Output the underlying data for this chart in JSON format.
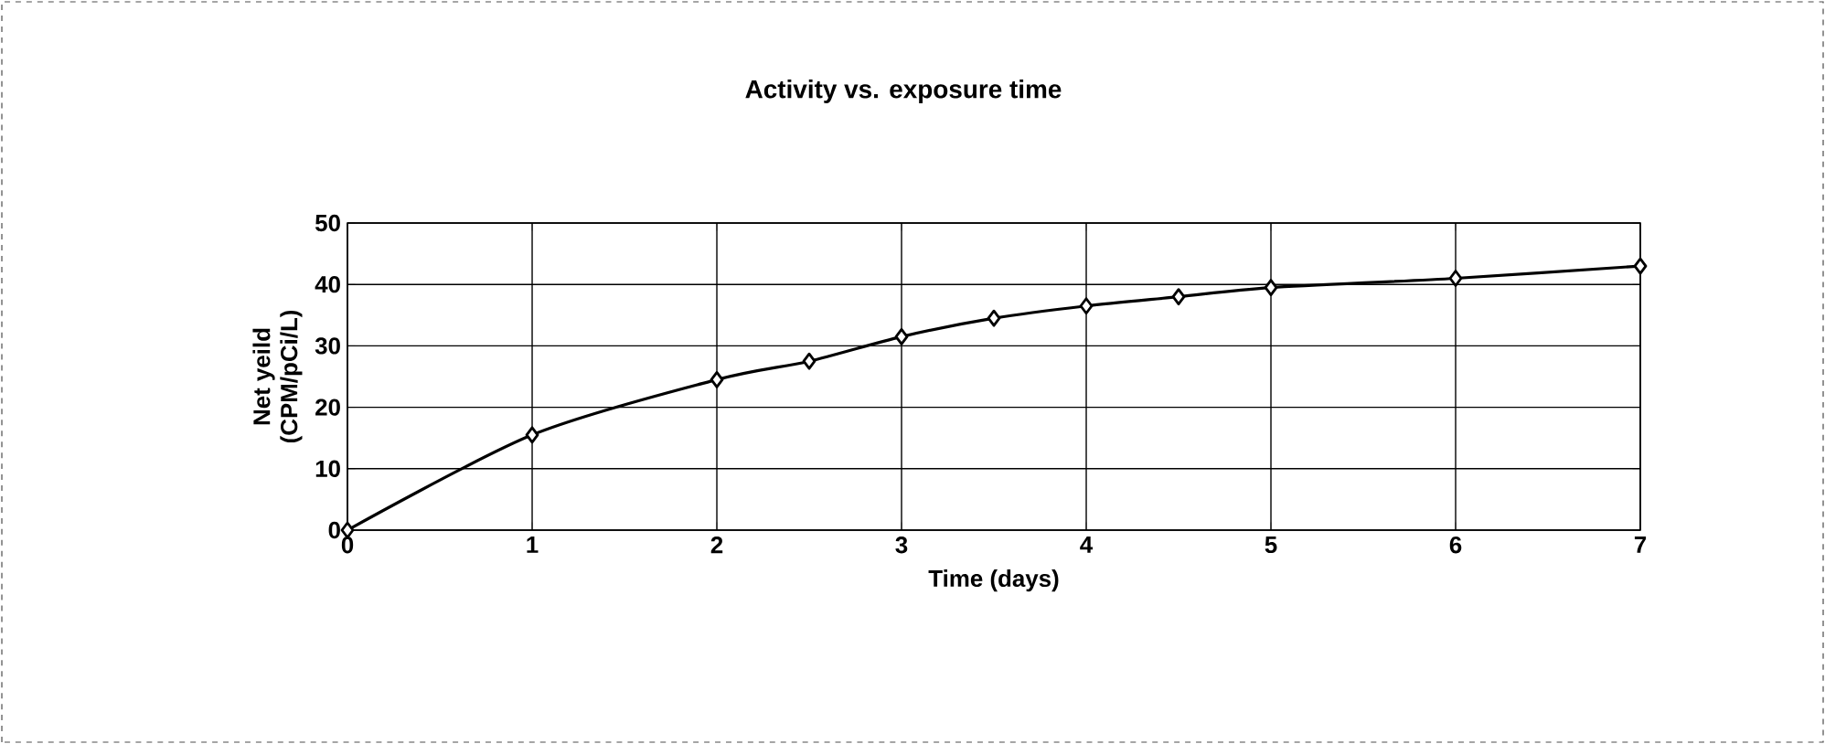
{
  "chart_data": {
    "type": "line",
    "title": "Activity vs. exposure time",
    "xlabel": "Time (days)",
    "ylabel": "Net yeild\n(CPM/pCi/L)",
    "x": [
      0,
      1,
      2,
      2.5,
      3,
      3.5,
      4,
      4.5,
      5,
      6,
      7
    ],
    "series": [
      {
        "color": "#000000",
        "values": [
          0,
          15.5,
          24.5,
          27.5,
          31.5,
          34.5,
          36.5,
          38,
          39.5,
          41,
          43
        ]
      }
    ],
    "xlim": [
      0,
      7
    ],
    "xticks": [
      0,
      1,
      2,
      3,
      4,
      5,
      6,
      7
    ],
    "ylim": [
      0,
      50
    ],
    "yticks": [
      0,
      10,
      20,
      30,
      40,
      50
    ],
    "grid": true,
    "marker": "diamond",
    "line_style": "solid"
  }
}
